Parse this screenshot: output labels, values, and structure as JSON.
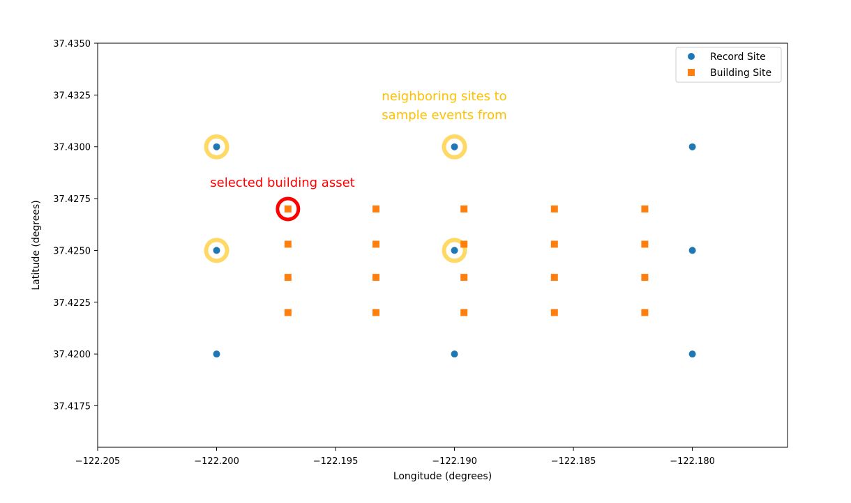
{
  "chart_data": {
    "type": "scatter",
    "xlabel": "Longitude (degrees)",
    "ylabel": "Latitude (degrees)",
    "xlim": [
      -122.205,
      -122.176
    ],
    "ylim": [
      37.4155,
      37.435
    ],
    "x_ticks": [
      -122.205,
      -122.2,
      -122.195,
      -122.19,
      -122.185,
      -122.18
    ],
    "x_tick_labels": [
      "−122.205",
      "−122.200",
      "−122.195",
      "−122.190",
      "−122.185",
      "−122.180"
    ],
    "y_ticks": [
      37.4175,
      37.42,
      37.4225,
      37.425,
      37.4275,
      37.43,
      37.4325,
      37.435
    ],
    "y_tick_labels": [
      "37.4175",
      "37.4200",
      "37.4225",
      "37.4250",
      "37.4275",
      "37.4300",
      "37.4325",
      "37.4350"
    ],
    "grid": false,
    "legend_position": "top-right",
    "series": [
      {
        "name": "Record Site",
        "marker": "circle",
        "color": "#1f77b4",
        "points": [
          [
            -122.2,
            37.43
          ],
          [
            -122.19,
            37.43
          ],
          [
            -122.18,
            37.43
          ],
          [
            -122.2,
            37.425
          ],
          [
            -122.19,
            37.425
          ],
          [
            -122.18,
            37.425
          ],
          [
            -122.2,
            37.42
          ],
          [
            -122.19,
            37.42
          ],
          [
            -122.18,
            37.42
          ]
        ]
      },
      {
        "name": "Building Site",
        "marker": "square",
        "color": "#ff7f0e",
        "points": [
          [
            -122.197,
            37.427
          ],
          [
            -122.1933,
            37.427
          ],
          [
            -122.1896,
            37.427
          ],
          [
            -122.1858,
            37.427
          ],
          [
            -122.182,
            37.427
          ],
          [
            -122.197,
            37.4253
          ],
          [
            -122.1933,
            37.4253
          ],
          [
            -122.1896,
            37.4253
          ],
          [
            -122.1858,
            37.4253
          ],
          [
            -122.182,
            37.4253
          ],
          [
            -122.197,
            37.4237
          ],
          [
            -122.1933,
            37.4237
          ],
          [
            -122.1896,
            37.4237
          ],
          [
            -122.1858,
            37.4237
          ],
          [
            -122.182,
            37.4237
          ],
          [
            -122.197,
            37.422
          ],
          [
            -122.1933,
            37.422
          ],
          [
            -122.1896,
            37.422
          ],
          [
            -122.1858,
            37.422
          ],
          [
            -122.182,
            37.422
          ]
        ]
      }
    ],
    "highlights": {
      "neighbor_sites": {
        "color": "#ffd966",
        "points": [
          [
            -122.2,
            37.43
          ],
          [
            -122.19,
            37.43
          ],
          [
            -122.2,
            37.425
          ],
          [
            -122.19,
            37.425
          ]
        ]
      },
      "selected_asset": {
        "color": "#ff0000",
        "point": [
          -122.197,
          37.427
        ]
      }
    },
    "annotations": {
      "neighbors_line1": "neighboring sites to",
      "neighbors_line2": "sample events from",
      "neighbors_color": "#ffc000",
      "selected": "selected building asset",
      "selected_color": "#ff0000"
    }
  }
}
